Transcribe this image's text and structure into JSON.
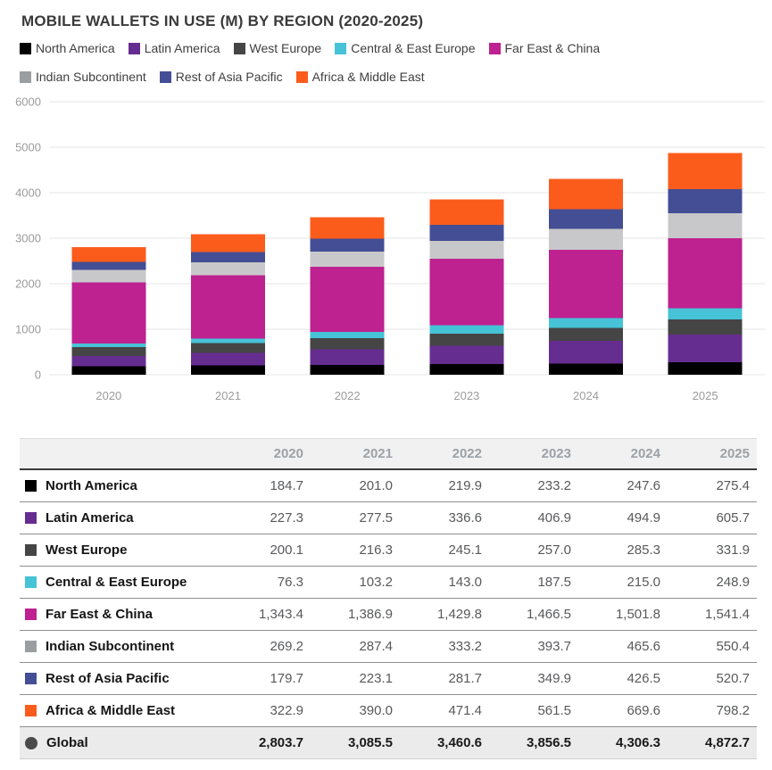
{
  "title": "MOBILE WALLETS IN USE (M) BY REGION (2020-2025)",
  "chart_data": {
    "type": "bar",
    "stacked": true,
    "title": "MOBILE WALLETS IN USE (M) BY REGION (2020-2025)",
    "categories": [
      "2020",
      "2021",
      "2022",
      "2023",
      "2024",
      "2025"
    ],
    "series": [
      {
        "name": "North America",
        "color": "#000000",
        "values": [
          184.7,
          201.0,
          219.9,
          233.2,
          247.6,
          275.4
        ]
      },
      {
        "name": "Latin America",
        "color": "#662D91",
        "values": [
          227.3,
          277.5,
          336.6,
          406.9,
          494.9,
          605.7
        ]
      },
      {
        "name": "West Europe",
        "color": "#454545",
        "values": [
          200.1,
          216.3,
          245.1,
          257.0,
          285.3,
          331.9
        ]
      },
      {
        "name": "Central & East Europe",
        "color": "#46C3D6",
        "values": [
          76.3,
          103.2,
          143.0,
          187.5,
          215.0,
          248.9
        ]
      },
      {
        "name": "Far East & China",
        "color": "#BE2190",
        "values": [
          1343.4,
          1386.9,
          1429.8,
          1466.5,
          1501.8,
          1541.4
        ]
      },
      {
        "name": "Indian Subcontinent",
        "color": "#C8C8CA",
        "swatch": "#9B9EA0",
        "values": [
          269.2,
          287.4,
          333.2,
          393.7,
          465.6,
          550.4
        ]
      },
      {
        "name": "Rest of Asia Pacific",
        "color": "#444E94",
        "values": [
          179.7,
          223.1,
          281.7,
          349.9,
          426.5,
          520.7
        ]
      },
      {
        "name": "Africa & Middle East",
        "color": "#FB5C1C",
        "values": [
          322.9,
          390.0,
          471.4,
          561.5,
          669.6,
          798.2
        ]
      }
    ],
    "ylim": [
      0,
      6000
    ],
    "yticks": [
      0,
      1000,
      2000,
      3000,
      4000,
      5000,
      6000
    ],
    "grid": true,
    "legend_position": "top",
    "xlabel": "",
    "ylabel": ""
  },
  "table": {
    "total_row": {
      "label": "Global",
      "marker_color": "#4A4A4A",
      "values": [
        2803.7,
        3085.5,
        3460.6,
        3856.5,
        4306.3,
        4872.7
      ]
    }
  },
  "style": {
    "grid_color": "#E5E5E5",
    "tick_color": "#9B9B9B"
  }
}
